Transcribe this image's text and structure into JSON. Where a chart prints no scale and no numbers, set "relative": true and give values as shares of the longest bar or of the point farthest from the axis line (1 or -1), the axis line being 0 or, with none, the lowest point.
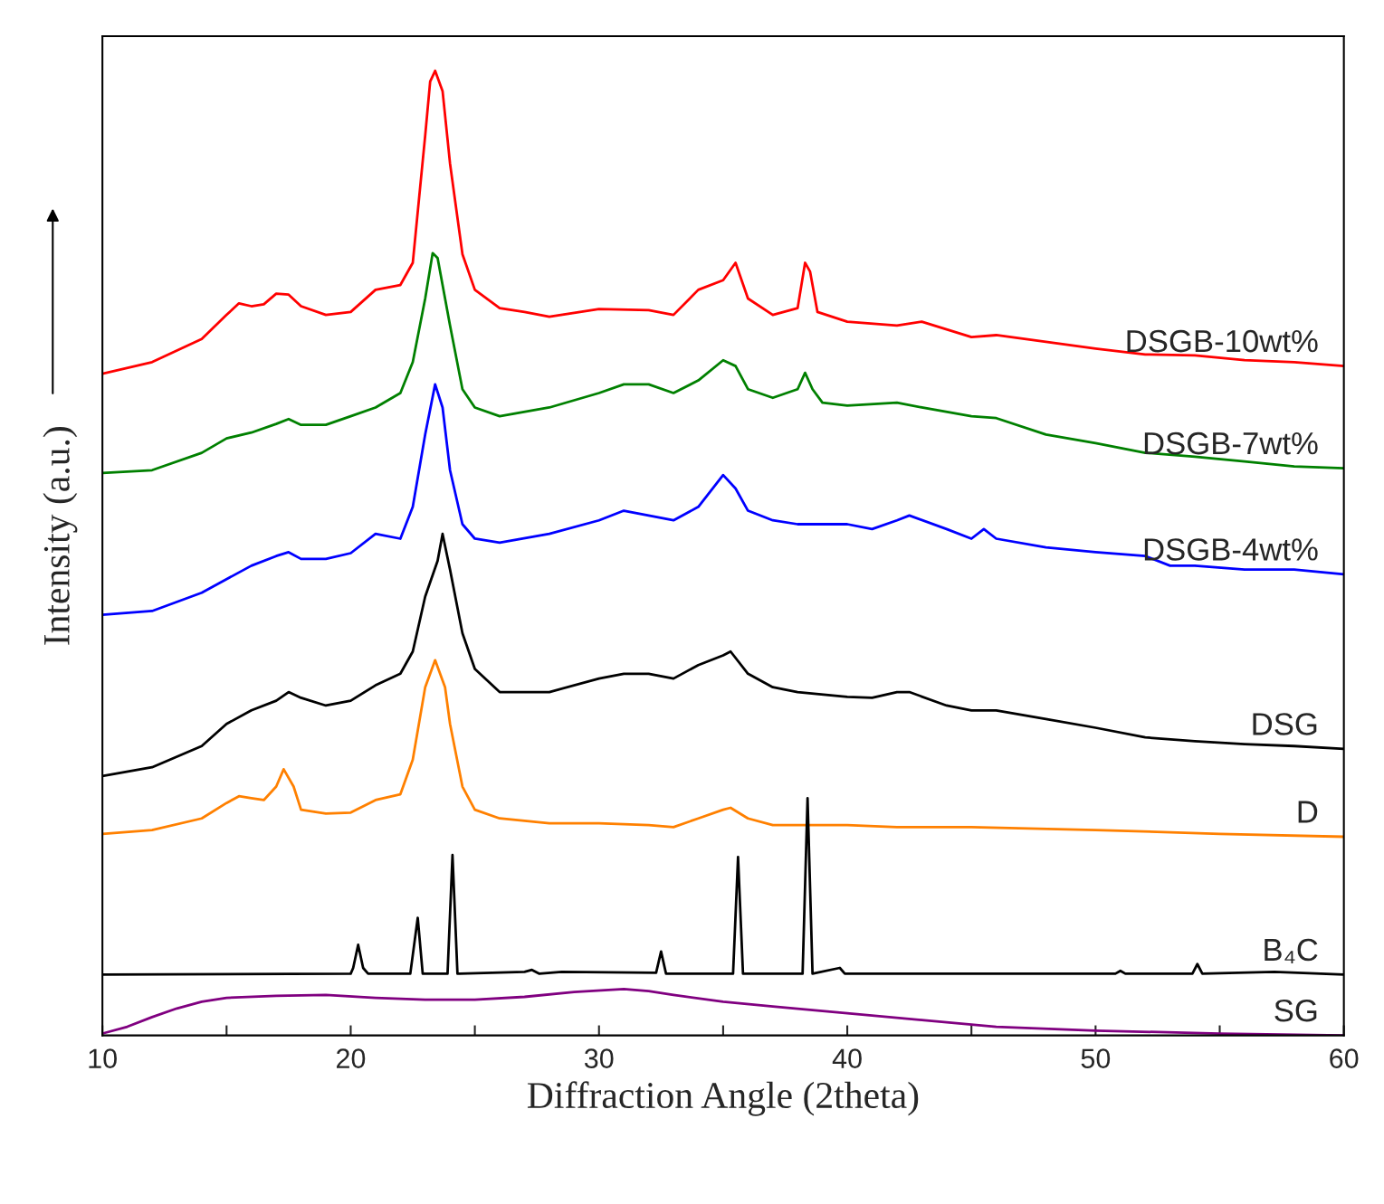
{
  "chart_data": {
    "type": "line",
    "relative": true,
    "xlabel": "Diffraction Angle (2theta)",
    "ylabel": "Intensity (a.u.)",
    "xlim": [
      10,
      60
    ],
    "xticks": [
      10,
      {
        "value": 15,
        "label": null
      },
      20,
      {
        "value": 25,
        "label": null
      },
      30,
      {
        "value": 35,
        "label": null
      },
      40,
      {
        "value": 45,
        "label": null
      },
      50,
      {
        "value": 55,
        "label": null
      },
      60
    ],
    "legend": false,
    "grid": false,
    "marker": "none",
    "line_style": "solid",
    "series": [
      {
        "name": "DSGB-10wt%",
        "color": "#ff0000",
        "x": [
          10,
          12,
          14,
          15,
          15.5,
          16,
          16.5,
          17,
          17.5,
          18,
          19,
          20,
          21,
          22,
          22.5,
          23,
          23.2,
          23.4,
          23.7,
          24,
          24.5,
          25,
          26,
          27,
          28,
          30,
          32,
          33,
          34,
          35,
          35.5,
          36,
          37,
          38,
          38.3,
          38.5,
          38.8,
          40,
          42,
          43,
          45,
          46,
          48,
          50,
          52,
          54,
          56,
          58,
          60
        ],
        "values": [
          0.686,
          0.698,
          0.722,
          0.747,
          0.759,
          0.756,
          0.758,
          0.769,
          0.768,
          0.756,
          0.747,
          0.75,
          0.773,
          0.778,
          0.801,
          0.933,
          0.989,
          1.0,
          0.979,
          0.904,
          0.81,
          0.773,
          0.754,
          0.75,
          0.745,
          0.753,
          0.752,
          0.747,
          0.773,
          0.783,
          0.801,
          0.764,
          0.747,
          0.754,
          0.801,
          0.792,
          0.75,
          0.74,
          0.736,
          0.74,
          0.724,
          0.726,
          0.719,
          0.712,
          0.706,
          0.705,
          0.7,
          0.698,
          0.694
        ]
      },
      {
        "name": "DSGB-7wt%",
        "color": "#008000",
        "x": [
          10,
          12,
          14,
          15,
          16,
          17,
          17.5,
          18,
          19,
          20,
          21,
          22,
          22.5,
          23,
          23.3,
          23.5,
          24,
          24.5,
          25,
          26,
          28,
          30,
          31,
          32,
          33,
          34,
          35,
          35.5,
          36,
          37,
          38,
          38.3,
          38.6,
          39,
          40,
          42,
          43,
          45,
          46,
          48,
          50,
          52,
          54,
          56,
          58,
          60
        ],
        "values": [
          0.583,
          0.586,
          0.604,
          0.619,
          0.625,
          0.634,
          0.639,
          0.633,
          0.633,
          0.642,
          0.651,
          0.666,
          0.698,
          0.764,
          0.811,
          0.806,
          0.736,
          0.67,
          0.651,
          0.642,
          0.651,
          0.666,
          0.675,
          0.675,
          0.666,
          0.679,
          0.7,
          0.694,
          0.67,
          0.661,
          0.67,
          0.687,
          0.67,
          0.656,
          0.653,
          0.656,
          0.651,
          0.642,
          0.64,
          0.623,
          0.614,
          0.604,
          0.6,
          0.595,
          0.59,
          0.588
        ]
      },
      {
        "name": "DSGB-4wt%",
        "color": "#0000ff",
        "x": [
          10,
          12,
          14,
          15,
          16,
          17,
          17.5,
          18,
          19,
          20,
          21,
          22,
          22.5,
          23,
          23.4,
          23.7,
          24,
          24.5,
          25,
          26,
          28,
          30,
          31,
          32,
          33,
          34,
          35,
          35.5,
          36,
          37,
          38,
          40,
          41,
          42,
          42.5,
          44,
          45,
          45.5,
          46,
          48,
          50,
          52,
          53,
          54,
          56,
          58,
          60
        ],
        "values": [
          0.436,
          0.44,
          0.459,
          0.473,
          0.487,
          0.497,
          0.501,
          0.494,
          0.494,
          0.5,
          0.52,
          0.515,
          0.548,
          0.623,
          0.675,
          0.651,
          0.586,
          0.53,
          0.515,
          0.511,
          0.52,
          0.534,
          0.544,
          0.539,
          0.534,
          0.548,
          0.581,
          0.567,
          0.544,
          0.534,
          0.53,
          0.53,
          0.525,
          0.534,
          0.539,
          0.525,
          0.515,
          0.525,
          0.515,
          0.506,
          0.501,
          0.497,
          0.487,
          0.487,
          0.483,
          0.483,
          0.478
        ]
      },
      {
        "name": "DSG",
        "color": "#000000",
        "x": [
          10,
          12,
          14,
          15,
          16,
          17,
          17.5,
          18,
          19,
          20,
          21,
          22,
          22.5,
          23,
          23.5,
          23.7,
          24,
          24.5,
          25,
          26,
          28,
          30,
          31,
          32,
          33,
          34,
          35,
          35.3,
          36,
          37,
          38,
          40,
          41,
          42,
          42.5,
          44,
          45,
          46,
          48,
          50,
          52,
          54,
          56,
          58,
          60
        ],
        "values": [
          0.269,
          0.278,
          0.3,
          0.323,
          0.337,
          0.347,
          0.356,
          0.35,
          0.342,
          0.347,
          0.363,
          0.375,
          0.398,
          0.455,
          0.492,
          0.52,
          0.483,
          0.417,
          0.38,
          0.356,
          0.356,
          0.37,
          0.375,
          0.375,
          0.37,
          0.384,
          0.394,
          0.398,
          0.375,
          0.361,
          0.356,
          0.351,
          0.35,
          0.356,
          0.356,
          0.342,
          0.337,
          0.337,
          0.328,
          0.319,
          0.309,
          0.305,
          0.302,
          0.3,
          0.297
        ]
      },
      {
        "name": "D",
        "color": "#ff8000",
        "x": [
          10,
          12,
          14,
          15,
          15.5,
          16,
          16.5,
          17,
          17.3,
          17.7,
          18,
          19,
          20,
          21,
          22,
          22.5,
          23,
          23.4,
          23.8,
          24,
          24.5,
          25,
          26,
          28,
          30,
          32,
          33,
          34,
          35,
          35.3,
          36,
          37,
          40,
          42,
          45,
          50,
          55,
          60
        ],
        "values": [
          0.209,
          0.213,
          0.225,
          0.241,
          0.248,
          0.246,
          0.244,
          0.258,
          0.276,
          0.258,
          0.234,
          0.23,
          0.231,
          0.244,
          0.25,
          0.286,
          0.361,
          0.389,
          0.361,
          0.323,
          0.258,
          0.234,
          0.225,
          0.22,
          0.22,
          0.218,
          0.216,
          0.225,
          0.234,
          0.236,
          0.225,
          0.218,
          0.218,
          0.216,
          0.216,
          0.213,
          0.209,
          0.206
        ]
      },
      {
        "name": "B₄C",
        "color": "#000000",
        "x": [
          10,
          20,
          20.1,
          20.3,
          20.5,
          20.7,
          22.4,
          22.7,
          22.9,
          23.9,
          24.1,
          24.3,
          27,
          27.3,
          27.6,
          28.5,
          32.3,
          32.5,
          32.7,
          35.4,
          35.6,
          35.8,
          38.2,
          38.4,
          38.6,
          39.7,
          39.9,
          50.8,
          51,
          51.2,
          53.9,
          54.1,
          54.3,
          57.2,
          60
        ],
        "values": [
          0.063,
          0.064,
          0.07,
          0.094,
          0.07,
          0.064,
          0.064,
          0.122,
          0.064,
          0.064,
          0.187,
          0.064,
          0.066,
          0.068,
          0.064,
          0.066,
          0.065,
          0.087,
          0.064,
          0.064,
          0.185,
          0.064,
          0.064,
          0.246,
          0.064,
          0.07,
          0.064,
          0.064,
          0.067,
          0.064,
          0.064,
          0.074,
          0.064,
          0.066,
          0.063
        ]
      },
      {
        "name": "SG",
        "color": "#800080",
        "x": [
          10,
          11,
          12,
          13,
          14,
          15,
          17,
          19,
          21,
          23,
          25,
          27,
          29,
          31,
          32,
          33,
          35,
          37,
          40,
          43,
          46,
          50,
          55,
          60
        ],
        "values": [
          0.002,
          0.009,
          0.019,
          0.028,
          0.035,
          0.039,
          0.041,
          0.042,
          0.039,
          0.037,
          0.037,
          0.04,
          0.045,
          0.048,
          0.046,
          0.042,
          0.035,
          0.03,
          0.023,
          0.016,
          0.009,
          0.005,
          0.002,
          0
        ]
      }
    ]
  }
}
